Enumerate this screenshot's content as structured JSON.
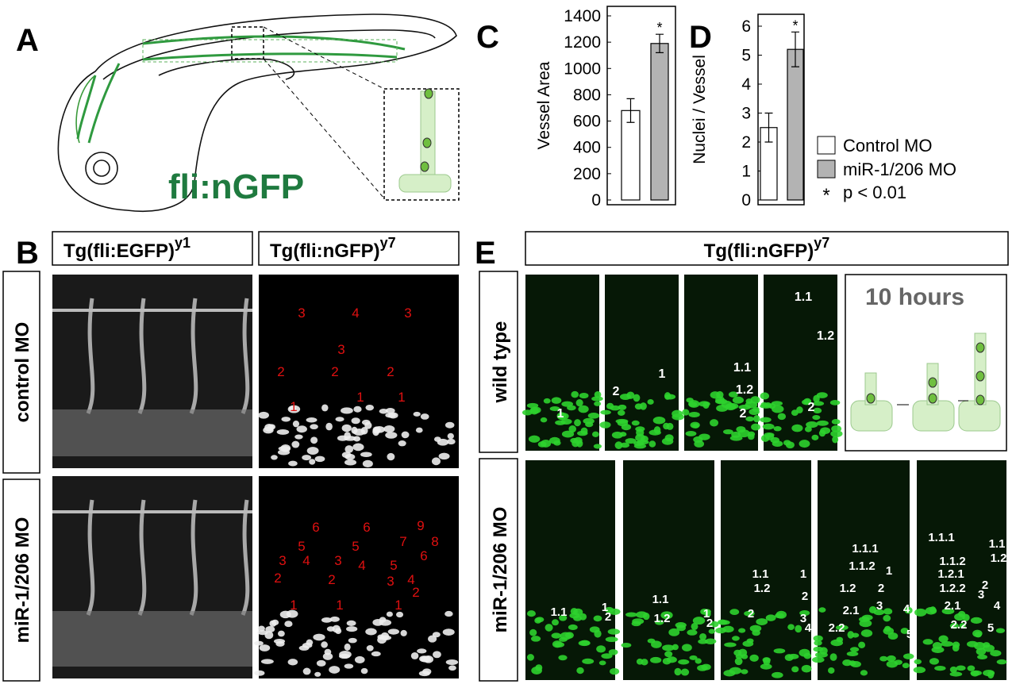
{
  "panel_a": {
    "label": "A",
    "title": "fli:nGFP"
  },
  "chart_data": [
    {
      "type": "bar",
      "panel": "C",
      "ylabel": "Vessel Area",
      "ylim": [
        0,
        1400
      ],
      "yticks": [
        0,
        200,
        400,
        600,
        800,
        1000,
        1200,
        1400
      ],
      "series": [
        {
          "color": "#ffffff",
          "values": [
            680
          ],
          "errors": [
            90
          ]
        },
        {
          "color": "#b3b3b3",
          "values": [
            1190
          ],
          "errors": [
            70
          ],
          "annotation": "*"
        }
      ]
    },
    {
      "type": "bar",
      "panel": "D",
      "ylabel": "Nuclei / Vessel",
      "ylim": [
        0,
        6
      ],
      "yticks": [
        0,
        1,
        2,
        3,
        4,
        5,
        6
      ],
      "series": [
        {
          "name": "Control MO",
          "color": "#ffffff",
          "values": [
            2.5
          ],
          "errors": [
            0.5
          ]
        },
        {
          "name": "miR-1/206 MO",
          "color": "#b3b3b3",
          "values": [
            5.2
          ],
          "errors": [
            0.6
          ],
          "annotation": "*"
        }
      ],
      "note_symbol": "*",
      "note": "p < 0.01"
    }
  ],
  "panel_b": {
    "label": "B",
    "columns": [
      {
        "text": "Tg(fli:EGFP)",
        "sup": "y1"
      },
      {
        "text": "Tg(fli:nGFP)",
        "sup": "y7"
      }
    ],
    "rows": [
      "control MO",
      "miR-1/206 MO"
    ],
    "nuclei_labels": [
      [
        "3",
        "4",
        "3",
        "3",
        "2",
        "2",
        "2",
        "1",
        "1",
        "1"
      ],
      [
        "6",
        "6",
        "9",
        "8",
        "7",
        "6",
        "5",
        "5",
        "3",
        "4",
        "3",
        "4",
        "5",
        "4",
        "2",
        "2",
        "3",
        "2",
        "1",
        "1",
        "1"
      ]
    ]
  },
  "panel_e": {
    "label": "E",
    "header": {
      "text": "Tg(fli:nGFP)",
      "sup": "y7"
    },
    "rows": [
      "wild type",
      "miR-1/206 MO"
    ],
    "schematic_title": "10 hours",
    "wild_type_labels": [
      [
        "1"
      ],
      [
        "1",
        "2"
      ],
      [
        "1.1",
        "1.2",
        "2"
      ],
      [
        "1.1",
        "1.2",
        "2"
      ]
    ],
    "mir_labels": [
      [
        "1.1",
        "1",
        "2"
      ],
      [
        "1.1",
        "1.2",
        "1",
        "2"
      ],
      [
        "1.1",
        "1.2",
        "2",
        "1",
        "2",
        "3",
        "4"
      ],
      [
        "1.1.1",
        "1.1.2",
        "1.2",
        "2.1",
        "2.2",
        "1",
        "2",
        "3",
        "4",
        "5"
      ],
      [
        "1.1.1",
        "1.1.2",
        "1.2.1",
        "1.2.2",
        "2.1",
        "2.2",
        "1.1",
        "1.2",
        "3",
        "2",
        "4",
        "5"
      ]
    ]
  }
}
